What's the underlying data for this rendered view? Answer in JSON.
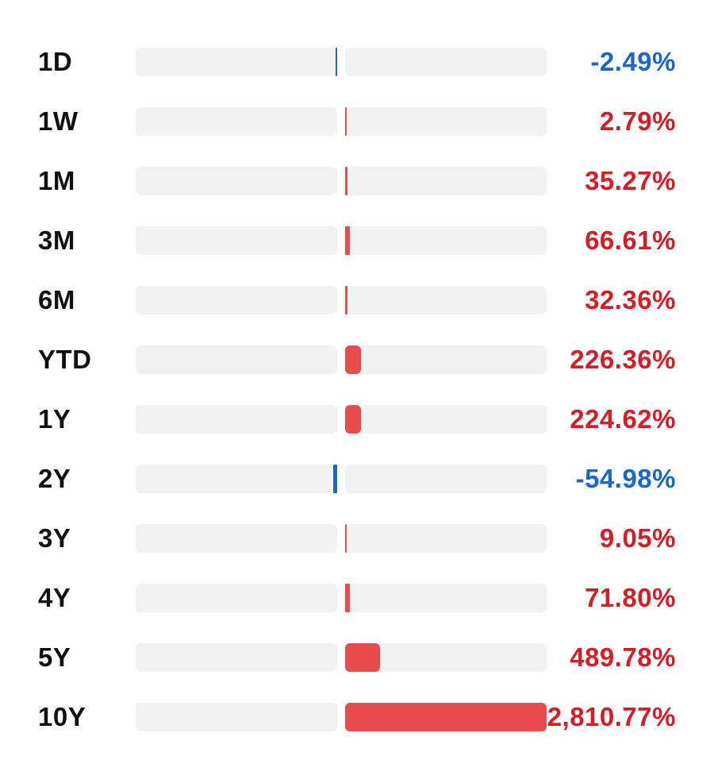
{
  "colors": {
    "positive": "#d71c24",
    "negative": "#1a66c9",
    "positive_bar": "#e84c4c",
    "negative_bar": "#1a66c9",
    "track": "#f2f2f2"
  },
  "chart_data": {
    "type": "bar",
    "orientation": "horizontal-diverging",
    "title": "",
    "xlabel": "",
    "ylabel": "",
    "unit": "%",
    "categories": [
      "1D",
      "1W",
      "1M",
      "3M",
      "6M",
      "YTD",
      "1Y",
      "2Y",
      "3Y",
      "4Y",
      "5Y",
      "10Y"
    ],
    "values": [
      -2.49,
      2.79,
      35.27,
      66.61,
      32.36,
      226.36,
      224.62,
      -54.98,
      9.05,
      71.8,
      489.78,
      2810.77
    ],
    "value_labels": [
      "-2.49%",
      "2.79%",
      "35.27%",
      "66.61%",
      "32.36%",
      "226.36%",
      "224.62%",
      "-54.98%",
      "9.05%",
      "71.80%",
      "489.78%",
      "2,810.77%"
    ],
    "xlim": [
      -2810.77,
      2810.77
    ],
    "grid": false,
    "legend": "none"
  }
}
